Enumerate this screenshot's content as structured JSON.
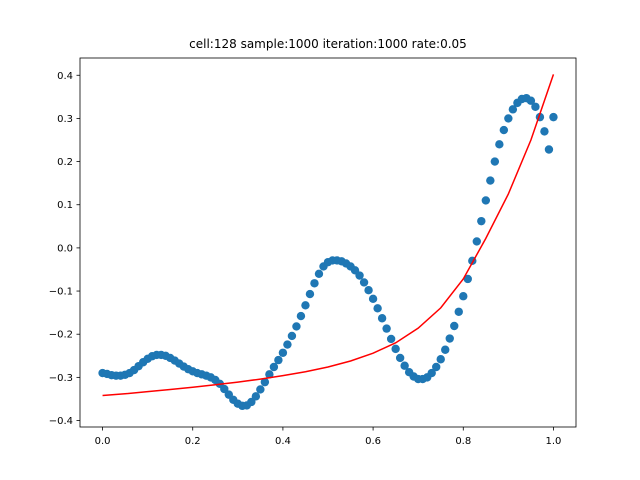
{
  "chart_data": {
    "type": "scatter",
    "title": "cell:128 sample:1000 iteration:1000 rate:0.05",
    "xlabel": "",
    "ylabel": "",
    "xlim": [
      -0.05,
      1.05
    ],
    "ylim": [
      -0.415,
      0.44
    ],
    "xticks": [
      0.0,
      0.2,
      0.4,
      0.6,
      0.8,
      1.0
    ],
    "xtick_labels": [
      "0.0",
      "0.2",
      "0.4",
      "0.6",
      "0.8",
      "1.0"
    ],
    "yticks": [
      -0.4,
      -0.3,
      -0.2,
      -0.1,
      0.0,
      0.1,
      0.2,
      0.3,
      0.4
    ],
    "ytick_labels": [
      "−0.4",
      "−0.3",
      "−0.2",
      "−0.1",
      "0.0",
      "0.1",
      "0.2",
      "0.3",
      "0.4"
    ],
    "grid": false,
    "legend": "none",
    "series": [
      {
        "kind": "scatter",
        "color": "#1f77b4",
        "x": [
          0.0,
          0.01,
          0.02,
          0.03,
          0.04,
          0.05,
          0.06,
          0.07,
          0.08,
          0.09,
          0.1,
          0.11,
          0.12,
          0.13,
          0.14,
          0.15,
          0.16,
          0.17,
          0.18,
          0.19,
          0.2,
          0.21,
          0.22,
          0.23,
          0.24,
          0.25,
          0.26,
          0.27,
          0.28,
          0.29,
          0.3,
          0.31,
          0.32,
          0.33,
          0.34,
          0.35,
          0.36,
          0.37,
          0.38,
          0.39,
          0.4,
          0.41,
          0.42,
          0.43,
          0.44,
          0.45,
          0.46,
          0.47,
          0.48,
          0.49,
          0.5,
          0.51,
          0.52,
          0.53,
          0.54,
          0.55,
          0.56,
          0.57,
          0.58,
          0.59,
          0.6,
          0.61,
          0.62,
          0.63,
          0.64,
          0.65,
          0.66,
          0.67,
          0.68,
          0.69,
          0.7,
          0.71,
          0.72,
          0.73,
          0.74,
          0.75,
          0.76,
          0.77,
          0.78,
          0.79,
          0.8,
          0.81,
          0.82,
          0.83,
          0.84,
          0.85,
          0.86,
          0.87,
          0.88,
          0.89,
          0.9,
          0.91,
          0.92,
          0.93,
          0.94,
          0.95,
          0.96,
          0.97,
          0.98,
          0.99,
          1.0
        ],
        "y": [
          -0.29,
          -0.292,
          -0.295,
          -0.296,
          -0.296,
          -0.294,
          -0.29,
          -0.283,
          -0.274,
          -0.265,
          -0.257,
          -0.251,
          -0.248,
          -0.248,
          -0.25,
          -0.255,
          -0.261,
          -0.268,
          -0.275,
          -0.281,
          -0.286,
          -0.29,
          -0.293,
          -0.296,
          -0.3,
          -0.306,
          -0.315,
          -0.327,
          -0.34,
          -0.352,
          -0.361,
          -0.366,
          -0.365,
          -0.357,
          -0.344,
          -0.328,
          -0.311,
          -0.293,
          -0.276,
          -0.26,
          -0.243,
          -0.224,
          -0.204,
          -0.182,
          -0.158,
          -0.133,
          -0.107,
          -0.082,
          -0.06,
          -0.043,
          -0.033,
          -0.029,
          -0.029,
          -0.031,
          -0.036,
          -0.043,
          -0.052,
          -0.064,
          -0.08,
          -0.098,
          -0.118,
          -0.14,
          -0.163,
          -0.187,
          -0.211,
          -0.234,
          -0.255,
          -0.273,
          -0.288,
          -0.298,
          -0.304,
          -0.304,
          -0.3,
          -0.29,
          -0.276,
          -0.258,
          -0.236,
          -0.21,
          -0.181,
          -0.148,
          -0.112,
          -0.072,
          -0.03,
          0.015,
          0.062,
          0.11,
          0.156,
          0.2,
          0.24,
          0.273,
          0.3,
          0.321,
          0.336,
          0.345,
          0.347,
          0.341,
          0.327,
          0.303,
          0.27,
          0.228,
          0.303
        ]
      },
      {
        "kind": "line",
        "color": "#ff0000",
        "x": [
          0.0,
          0.05,
          0.1,
          0.15,
          0.2,
          0.25,
          0.3,
          0.35,
          0.4,
          0.45,
          0.5,
          0.55,
          0.6,
          0.65,
          0.7,
          0.75,
          0.8,
          0.85,
          0.9,
          0.95,
          1.0
        ],
        "y": [
          -0.342,
          -0.338,
          -0.333,
          -0.328,
          -0.323,
          -0.317,
          -0.311,
          -0.304,
          -0.296,
          -0.287,
          -0.276,
          -0.262,
          -0.244,
          -0.22,
          -0.186,
          -0.139,
          -0.072,
          0.022,
          0.125,
          0.25,
          0.402
        ]
      }
    ]
  }
}
